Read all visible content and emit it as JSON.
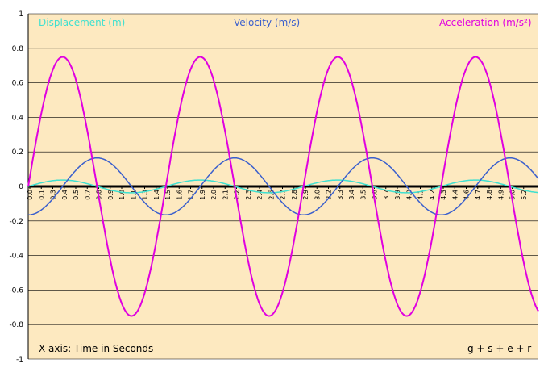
{
  "chart_data": {
    "type": "line",
    "xlabel": "X axis: Time in Seconds",
    "credit": "g + s + e + r",
    "ylim": [
      -1,
      1
    ],
    "yticks": [
      "1",
      "0.8",
      "0.6",
      "0.4",
      "0.2",
      "0",
      "-0.2",
      "-0.4",
      "-0.6",
      "-0.8",
      "-1"
    ],
    "xticks": [
      "0.0",
      "0.1",
      "0.3",
      "0.4",
      "0.5",
      "0.7",
      "0.8",
      "0.9",
      "1.0",
      "1.1",
      "1.3",
      "1.4",
      "1.5",
      "1.6",
      "1.7",
      "1.9",
      "2.0",
      "2.1",
      "2.2",
      "2.3",
      "2.4",
      "2.6",
      "2.7",
      "2.8",
      "2.9",
      "3.0",
      "3.2",
      "3.3",
      "3.4",
      "3.5",
      "3.6",
      "3.7",
      "3.9",
      "4.0",
      "4.1",
      "4.2",
      "4.3",
      "4.4",
      "4.6",
      "4.7",
      "4.8",
      "4.9",
      "5.0",
      "5.2"
    ],
    "xrange": [
      0,
      5.3
    ],
    "period": 1.43,
    "series": [
      {
        "name": "Displacement (m)",
        "color": "#40e0d0",
        "amplitude": 0.037,
        "phase": "sin"
      },
      {
        "name": "Velocity (m/s)",
        "color": "#3a5fcd",
        "amplitude": 0.165,
        "phase": "-cos"
      },
      {
        "name": "Acceleration (m/s²)",
        "color": "#e000e0",
        "amplitude": 0.75,
        "phase": "sin"
      }
    ],
    "grid": true,
    "background": "#fde9c0"
  }
}
